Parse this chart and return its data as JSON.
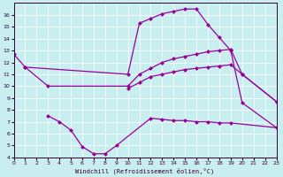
{
  "xlabel": "Windchill (Refroidissement éolien,°C)",
  "bg_color": "#c8eef0",
  "line_color": "#990099",
  "lx1": [
    0,
    1,
    10,
    11,
    12,
    13,
    14,
    15,
    16,
    17,
    18,
    19,
    20,
    23
  ],
  "ly1": [
    12.7,
    11.6,
    11.0,
    15.3,
    15.7,
    16.1,
    16.3,
    16.5,
    16.5,
    15.2,
    14.1,
    13.0,
    8.6,
    6.5
  ],
  "lx2": [
    1,
    3,
    10,
    11,
    12,
    13,
    14,
    15,
    16,
    17,
    18,
    19,
    20,
    23
  ],
  "ly2": [
    11.6,
    10.0,
    10.0,
    11.0,
    11.5,
    12.0,
    12.3,
    12.5,
    12.7,
    12.9,
    13.0,
    13.1,
    11.0,
    8.7
  ],
  "lx3": [
    10,
    11,
    12,
    13,
    14,
    15,
    16,
    17,
    18,
    19,
    20,
    23
  ],
  "ly3": [
    9.8,
    10.3,
    10.8,
    11.0,
    11.2,
    11.4,
    11.5,
    11.6,
    11.7,
    11.8,
    11.0,
    8.7
  ],
  "lx4": [
    3,
    4,
    5,
    6,
    7,
    8,
    9,
    12,
    13,
    14,
    15,
    16,
    17,
    18,
    19,
    23
  ],
  "ly4": [
    7.5,
    7.0,
    6.3,
    4.9,
    4.3,
    4.3,
    5.0,
    7.3,
    7.2,
    7.1,
    7.1,
    7.0,
    7.0,
    6.9,
    6.9,
    6.5
  ]
}
